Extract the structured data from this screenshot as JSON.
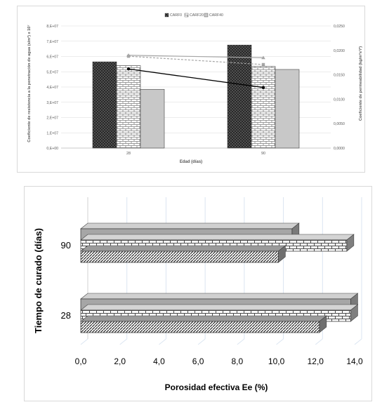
{
  "colors": {
    "grid": "#d9d9d9",
    "axis": "#bfbfbf",
    "text": "#595959",
    "bar_dark": "#3f3f3f",
    "bar_light": "#c8c8c8",
    "line_black": "#000000",
    "line_gray": "#a6a6a6"
  },
  "chart_data": [
    {
      "type": "bar",
      "legend": {
        "position": "top",
        "entries": [
          "CARF0",
          "CARF20",
          "CARF40"
        ]
      },
      "categories": [
        "28",
        "90"
      ],
      "xlabel": "Edad (días)",
      "ylabel": "Coeficiente de resistencia a la penetración de agua (s/m²) x 10⁷",
      "y2label": "Coeficiente de permeabilidad (kg/m²s¹/²)",
      "ylim": [
        0,
        80000000
      ],
      "y_ticks": [
        "0,E+00",
        "1,E+07",
        "2,E+07",
        "3,E+07",
        "4,E+07",
        "5,E+07",
        "6,E+07",
        "7,E+07",
        "8,E+07"
      ],
      "y2lim": [
        0,
        0.025
      ],
      "y2_ticks": [
        "0,0000",
        "0,0050",
        "0,0100",
        "0,0150",
        "0,0200",
        "0,0250"
      ],
      "grid": true,
      "series": [
        {
          "name": "CARF0",
          "values": [
            56500000,
            67500000
          ]
        },
        {
          "name": "CARF20",
          "values": [
            54000000,
            53500000
          ]
        },
        {
          "name": "CARF40",
          "values": [
            38500000,
            51500000
          ]
        }
      ],
      "lines": [
        {
          "values": [
            0.0162,
            0.0124
          ],
          "color": "#000000",
          "marker": "circle"
        },
        {
          "values": [
            0.019,
            0.0185
          ],
          "color": "#a6a6a6",
          "marker": "triangle"
        },
        {
          "values": [
            0.0188,
            0.0171
          ],
          "color": "#a6a6a6",
          "marker": "square",
          "dashed": true
        }
      ]
    },
    {
      "type": "bar",
      "orientation": "horizontal",
      "categories": [
        "28",
        "90"
      ],
      "xlabel": "Porosidad efectiva Ee (%)",
      "ylabel": "Tiempo de curado (días)",
      "xlim": [
        0,
        14
      ],
      "x_ticks": [
        "0,0",
        "2,0",
        "4,0",
        "6,0",
        "8,0",
        "10,0",
        "12,0",
        "14,0"
      ],
      "grid": true,
      "series": [
        {
          "values": [
            12.2,
            10.1
          ]
        },
        {
          "values": [
            13.8,
            13.6
          ]
        },
        {
          "values": [
            13.8,
            10.8
          ]
        }
      ]
    }
  ]
}
